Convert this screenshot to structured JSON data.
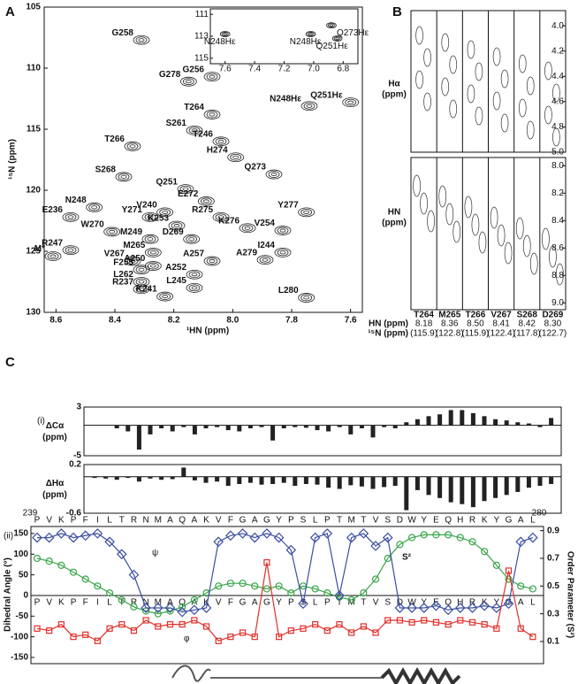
{
  "panel_a": {
    "letter": "A",
    "xlabel": "¹HN (ppm)",
    "ylabel": "¹⁵N (ppm)",
    "xlim": [
      8.64,
      7.56
    ],
    "ylim": [
      105,
      130
    ],
    "xticks": [
      8.6,
      8.4,
      8.2,
      {
        "value": 8,
        "label": "8.0"
      },
      7.8,
      7.6
    ],
    "yticks": [
      105,
      110,
      115,
      120,
      125,
      130
    ],
    "peaks": [
      {
        "label": "G258",
        "hn": 8.31,
        "n": 107.7
      },
      {
        "label": "G278",
        "hn": 8.15,
        "n": 111.1
      },
      {
        "label": "G256",
        "hn": 8.07,
        "n": 110.7
      },
      {
        "label": "T264",
        "hn": 8.07,
        "n": 113.8
      },
      {
        "label": "T246",
        "hn": 8.04,
        "n": 116.0
      },
      {
        "label": "S261",
        "hn": 8.13,
        "n": 115.1
      },
      {
        "label": "T266",
        "hn": 8.34,
        "n": 116.4
      },
      {
        "label": "H274",
        "hn": 7.99,
        "n": 117.3
      },
      {
        "label": "Q273",
        "hn": 7.86,
        "n": 118.7
      },
      {
        "label": "Q251",
        "hn": 8.16,
        "n": 119.9
      },
      {
        "label": "E272",
        "hn": 8.09,
        "n": 120.9
      },
      {
        "label": "R275",
        "hn": 8.04,
        "n": 122.2
      },
      {
        "label": "Y277",
        "hn": 7.75,
        "n": 121.8
      },
      {
        "label": "V254",
        "hn": 7.83,
        "n": 123.3
      },
      {
        "label": "K276",
        "hn": 7.95,
        "n": 123.1
      },
      {
        "label": "S268",
        "hn": 8.37,
        "n": 118.9
      },
      {
        "label": "N248",
        "hn": 8.47,
        "n": 121.4
      },
      {
        "label": "E236",
        "hn": 8.55,
        "n": 122.2
      },
      {
        "label": "Y271",
        "hn": 8.28,
        "n": 122.2
      },
      {
        "label": "V240",
        "hn": 8.23,
        "n": 121.8
      },
      {
        "label": "K253",
        "hn": 8.19,
        "n": 122.9
      },
      {
        "label": "W270",
        "hn": 8.41,
        "n": 123.4
      },
      {
        "label": "D269",
        "hn": 8.14,
        "n": 124.0
      },
      {
        "label": "M249",
        "hn": 8.28,
        "n": 124.0
      },
      {
        "label": "M265",
        "hn": 8.27,
        "n": 125.1
      },
      {
        "label": "V267",
        "hn": 8.34,
        "n": 125.8
      },
      {
        "label": "F255",
        "hn": 8.31,
        "n": 126.5
      },
      {
        "label": "A257",
        "hn": 8.07,
        "n": 125.8
      },
      {
        "label": "R247",
        "hn": 8.55,
        "n": 124.9
      },
      {
        "label": "M*",
        "hn": 8.61,
        "n": 125.4
      },
      {
        "label": "A250",
        "hn": 8.27,
        "n": 126.2
      },
      {
        "label": "I244",
        "hn": 7.83,
        "n": 125.1
      },
      {
        "label": "A279",
        "hn": 7.89,
        "n": 125.7
      },
      {
        "label": "A252",
        "hn": 8.13,
        "n": 126.9
      },
      {
        "label": "L262",
        "hn": 8.31,
        "n": 127.5
      },
      {
        "label": "L245",
        "hn": 8.13,
        "n": 128.0
      },
      {
        "label": "R237",
        "hn": 8.31,
        "n": 128.1
      },
      {
        "label": "K241",
        "hn": 8.23,
        "n": 128.7
      },
      {
        "label": "L280",
        "hn": 7.75,
        "n": 128.8
      },
      {
        "label": "Q251Hε",
        "hn": 7.6,
        "n": 112.8
      },
      {
        "label": "N248Hε",
        "hn": 7.74,
        "n": 113.1
      }
    ],
    "inset": {
      "xlim": [
        7.7,
        6.7
      ],
      "ylim": [
        110.5,
        115.5
      ],
      "xticks": [
        7.6,
        7.4,
        7.2,
        {
          "value": 7,
          "label": "7.0"
        },
        6.8
      ],
      "yticks": [
        111,
        113,
        115
      ],
      "peaks": [
        {
          "label": "N248Hε",
          "hn": 7.6,
          "n": 112.8
        },
        {
          "label": "N248Hε",
          "hn": 7.02,
          "n": 112.8
        },
        {
          "label": "Q273Hε",
          "hn": 6.88,
          "n": 112.0
        },
        {
          "label": "Q251Hε",
          "hn": 6.84,
          "n": 113.2
        }
      ]
    }
  },
  "panel_b": {
    "letter": "B",
    "top_ylabel": [
      "Hα",
      "(ppm)"
    ],
    "top_ylim": [
      3.88,
      5.0
    ],
    "top_yticks": [
      {
        "value": 4,
        "label": "4.0"
      },
      4.2,
      4.4,
      4.6,
      4.8,
      {
        "value": 5,
        "label": "5.0"
      }
    ],
    "bottom_ylabel": [
      "HN",
      "(ppm)"
    ],
    "bottom_ylim": [
      7.94,
      9.05
    ],
    "bottom_yticks": [
      {
        "value": 8,
        "label": "8.0"
      },
      8.2,
      8.4,
      8.6,
      8.8,
      {
        "value": 9,
        "label": "9.0"
      }
    ],
    "row_labels": [
      "HN   (ppm)",
      "¹⁵N (ppm)"
    ],
    "strips": [
      {
        "residue": "T264",
        "hn": "8.18",
        "n15": "(115.9)"
      },
      {
        "residue": "M265",
        "hn": "8.36",
        "n15": "(122.8)"
      },
      {
        "residue": "T266",
        "hn": "8.50",
        "n15": "(115.9)"
      },
      {
        "residue": "V267",
        "hn": "8.41",
        "n15": "(122.4)"
      },
      {
        "residue": "S268",
        "hn": "8.42",
        "n15": "(117.8)"
      },
      {
        "residue": "D269",
        "hn": "8.30",
        "n15": "(122.7)"
      }
    ]
  },
  "panel_c": {
    "letter": "C",
    "part_i": "(i)",
    "part_ii": "(ii)",
    "start": 239,
    "end": 280,
    "sequence": [
      "P",
      "V",
      "K",
      "P",
      "F",
      "I",
      "L",
      "T",
      "R",
      "N",
      "M",
      "A",
      "Q",
      "A",
      "K",
      "V",
      "F",
      "G",
      "A",
      "G",
      "Y",
      "P",
      "S",
      "L",
      "P",
      "T",
      "M",
      "T",
      "V",
      "S",
      "D",
      "W",
      "Y",
      "E",
      "Q",
      "H",
      "R",
      "K",
      "Y",
      "G",
      "A",
      "L"
    ],
    "dca": {
      "label": [
        "ΔCα",
        "(ppm)"
      ],
      "ylim": [
        -5,
        3
      ],
      "yticks": [
        3,
        -5
      ],
      "values": [
        0,
        0,
        -0.5,
        -1,
        -4,
        -1.5,
        -0.5,
        -1,
        -0.3,
        -1.5,
        -0.5,
        -0.3,
        -0.8,
        -1,
        -0.5,
        -0.3,
        -2.5,
        -0.5,
        -0.3,
        -0.4,
        -0.8,
        -1,
        -0.3,
        -1.5,
        -0.5,
        -2,
        -0.3,
        -0.5,
        0.5,
        1,
        1.5,
        1.8,
        2.5,
        2.5,
        2,
        1.5,
        1,
        0.8,
        0.5,
        0.3,
        -0.3,
        1.2
      ]
    },
    "dha": {
      "label": [
        "ΔHα",
        "(ppm)"
      ],
      "ylim": [
        -0.6,
        0.2
      ],
      "yticks": [
        0.2,
        -0.6
      ],
      "values": [
        -0.02,
        -0.03,
        -0.05,
        -0.02,
        -0.08,
        -0.03,
        -0.05,
        -0.04,
        0.15,
        -0.06,
        -0.1,
        -0.08,
        -0.15,
        -0.12,
        -0.1,
        -0.13,
        -0.12,
        -0.1,
        -0.15,
        -0.12,
        -0.13,
        -0.18,
        -0.2,
        -0.14,
        -0.16,
        -0.2,
        -0.17,
        -0.15,
        -0.55,
        -0.22,
        -0.3,
        -0.35,
        -0.42,
        -0.45,
        -0.5,
        -0.4,
        -0.35,
        -0.3,
        -0.25,
        -0.18,
        -0.15,
        -0.12
      ]
    },
    "dihedral": {
      "ylabel": "Dihedral Angle (°)",
      "ylim": [
        -165,
        167
      ],
      "yticks": [
        150,
        100,
        50,
        0,
        -50,
        -100,
        -150
      ],
      "psi": {
        "name": "ψ",
        "color": "#3a4fa3",
        "values": [
          140,
          140,
          150,
          140,
          145,
          150,
          130,
          100,
          50,
          -30,
          -30,
          -30,
          -40,
          -35,
          -30,
          130,
          145,
          150,
          140,
          150,
          140,
          110,
          -20,
          140,
          150,
          0,
          140,
          150,
          120,
          140,
          -30,
          -30,
          -30,
          -25,
          -35,
          -30,
          -30,
          -25,
          -30,
          -20,
          130,
          140
        ]
      },
      "phi": {
        "name": "φ",
        "color": "#e0302a",
        "values": [
          -80,
          -85,
          -70,
          -100,
          -95,
          -110,
          -80,
          -70,
          -85,
          -60,
          -75,
          -70,
          -70,
          -60,
          -75,
          -110,
          -100,
          -90,
          -100,
          80,
          -100,
          -85,
          -80,
          -70,
          -85,
          -70,
          -90,
          -75,
          -90,
          -60,
          -60,
          -65,
          -60,
          -65,
          -70,
          -60,
          -65,
          -70,
          -80,
          60,
          -80,
          -100
        ]
      }
    },
    "s2": {
      "name": "S²",
      "color": "#3aa64a",
      "ylabel": "Order Parameter (S²)",
      "y2lim": [
        -0.06,
        0.93
      ],
      "y2ticks": [
        0.9,
        0.7,
        0.5,
        0.3,
        0.1
      ],
      "values": [
        0.7,
        0.68,
        0.65,
        0.6,
        0.55,
        0.5,
        0.45,
        0.4,
        0.35,
        0.32,
        0.3,
        0.32,
        0.35,
        0.4,
        0.45,
        0.5,
        0.52,
        0.52,
        0.5,
        0.48,
        0.5,
        0.45,
        0.5,
        0.48,
        0.45,
        0.42,
        0.4,
        0.45,
        0.55,
        0.7,
        0.8,
        0.85,
        0.87,
        0.87,
        0.87,
        0.85,
        0.82,
        0.75,
        0.65,
        0.55,
        0.5,
        0.48
      ]
    }
  }
}
